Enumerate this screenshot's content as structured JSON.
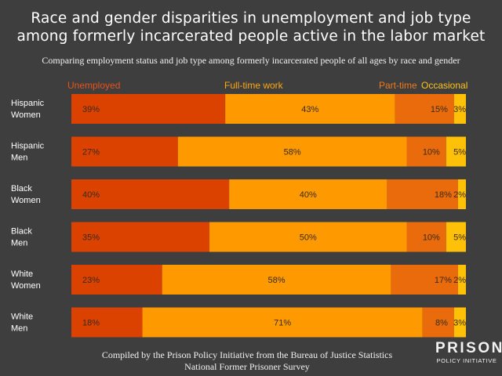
{
  "chart_data": {
    "type": "bar",
    "orientation": "horizontal",
    "stacked": true,
    "normalized": true,
    "title": "Race and gender disparities in unemployment and job type among formerly incarcerated people active in the labor market",
    "title_lines": [
      "Race and gender disparities in unemployment and job type",
      "among formerly incarcerated people active in the labor market"
    ],
    "subtitle": "Comparing employment status and job type among formerly incarcerated people of all ages by race and gender",
    "categories": [
      [
        "Hispanic",
        "Women"
      ],
      [
        "Hispanic",
        "Men"
      ],
      [
        "Black",
        "Women"
      ],
      [
        "Black",
        "Men"
      ],
      [
        "White",
        "Women"
      ],
      [
        "White",
        "Men"
      ]
    ],
    "series": [
      {
        "name": "Unemployed",
        "color": "#db4200",
        "values": [
          39,
          27,
          40,
          35,
          23,
          18
        ]
      },
      {
        "name": "Full-time work",
        "color": "#fe9a00",
        "values": [
          43,
          58,
          40,
          50,
          58,
          71
        ]
      },
      {
        "name": "Part-time",
        "color": "#e96b0c",
        "values": [
          15,
          10,
          18,
          10,
          17,
          8
        ]
      },
      {
        "name": "Occasional",
        "color": "#ffc107",
        "values": [
          3,
          5,
          2,
          5,
          2,
          3
        ]
      }
    ],
    "value_suffix": "%",
    "xlim": [
      0,
      100
    ],
    "xlabel": "",
    "ylabel": "",
    "grid": false
  },
  "legend": {
    "unemployed": {
      "label": "Unemployed",
      "color": "#e8521a"
    },
    "fulltime": {
      "label": "Full-time work",
      "color": "#ffa812"
    },
    "parttime": {
      "label": "Part-time",
      "color": "#ef7a1a"
    },
    "occasional": {
      "label": "Occasional",
      "color": "#ffc51a"
    }
  },
  "footer": {
    "line1": "Compiled by the Prison Policy Initiative from the Bureau of Justice Statistics",
    "line2": "National Former Prisoner Survey"
  },
  "logo": {
    "main": "PRISON",
    "sub": "POLICY INITIATIVE"
  }
}
